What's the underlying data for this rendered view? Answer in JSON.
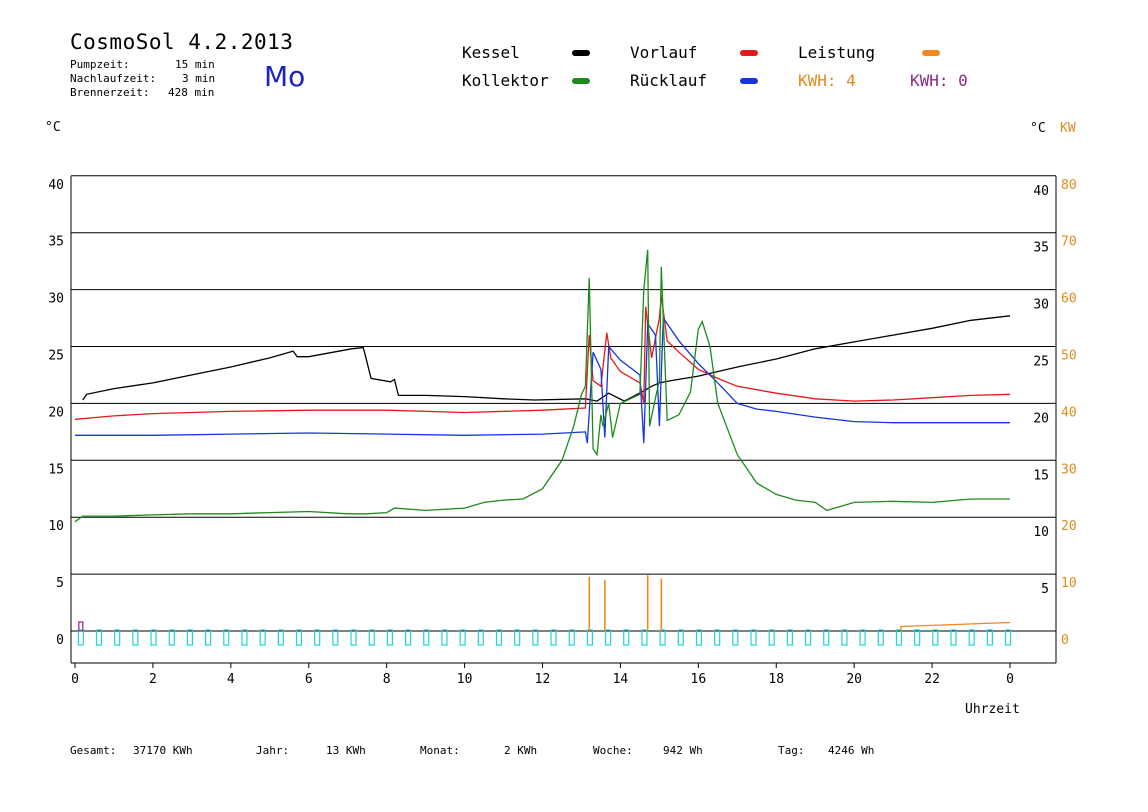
{
  "header": {
    "title": "CosmoSol 4.2.2013",
    "day": "Mo",
    "params": [
      {
        "label": "Pumpzeit:",
        "value": "15 min"
      },
      {
        "label": "Nachlaufzeit:",
        "value": "3 min"
      },
      {
        "label": "Brennerzeit:",
        "value": "428 min"
      }
    ]
  },
  "legend": {
    "kessel": {
      "label": "Kessel",
      "color": "#000000"
    },
    "vorlauf": {
      "label": "Vorlauf",
      "color": "#e11a1a"
    },
    "leistung": {
      "label": "Leistung",
      "color": "#f08a1c"
    },
    "kollektor": {
      "label": "Kollektor",
      "color": "#1d8a1d"
    },
    "ruecklauf": {
      "label": "Rücklauf",
      "color": "#1535e0"
    },
    "kwh1": {
      "label": "KWH: 4",
      "color": "#e08a1c"
    },
    "kwh2": {
      "label": "KWH: 0",
      "color": "#8a2a8a"
    }
  },
  "units": {
    "left": "°C",
    "right_c": "°C",
    "right_kw": "KW"
  },
  "footer": [
    {
      "label": "Gesamt:",
      "value": "37170 KWh"
    },
    {
      "label": "Jahr:",
      "value": "13 KWh"
    },
    {
      "label": "Monat:",
      "value": "2 KWh"
    },
    {
      "label": "Woche:",
      "value": "942 Wh"
    },
    {
      "label": "Tag:",
      "value": "4246 Wh"
    }
  ],
  "chart_data": {
    "type": "line",
    "xlabel": "Uhrzeit",
    "x_ticks": [
      "0",
      "2",
      "4",
      "6",
      "8",
      "10",
      "12",
      "14",
      "16",
      "18",
      "20",
      "22",
      "0"
    ],
    "x_range": [
      0,
      24
    ],
    "y_left_ticks": [
      "40",
      "35",
      "30",
      "25",
      "20",
      "15",
      "10",
      "5",
      "0"
    ],
    "y_right_c_ticks": [
      "40",
      "35",
      "30",
      "25",
      "20",
      "15",
      "10",
      "5"
    ],
    "y_right_kw_ticks": [
      "80",
      "70",
      "60",
      "50",
      "40",
      "30",
      "20",
      "10",
      "0"
    ],
    "ylim_c": [
      0,
      40
    ],
    "ylim_kw": [
      0,
      80
    ],
    "grid": "horizontal",
    "series": [
      {
        "name": "Kessel",
        "color": "#000000",
        "points": [
          [
            0.2,
            20.3
          ],
          [
            0.3,
            20.8
          ],
          [
            1,
            21.3
          ],
          [
            2,
            21.8
          ],
          [
            3,
            22.5
          ],
          [
            4,
            23.2
          ],
          [
            5,
            24
          ],
          [
            5.6,
            24.6
          ],
          [
            5.7,
            24.1
          ],
          [
            6,
            24.1
          ],
          [
            7.1,
            24.8
          ],
          [
            7.4,
            24.9
          ],
          [
            7.6,
            22.2
          ],
          [
            8.1,
            21.9
          ],
          [
            8.2,
            22.1
          ],
          [
            8.3,
            20.7
          ],
          [
            9,
            20.7
          ],
          [
            10,
            20.6
          ],
          [
            11,
            20.4
          ],
          [
            11.8,
            20.3
          ],
          [
            13.1,
            20.4
          ],
          [
            13.4,
            20.2
          ],
          [
            13.7,
            20.9
          ],
          [
            14.1,
            20.2
          ],
          [
            14.6,
            21.1
          ],
          [
            14.8,
            21.5
          ],
          [
            15,
            21.8
          ],
          [
            15.3,
            22
          ],
          [
            16,
            22.4
          ],
          [
            17,
            23.2
          ],
          [
            18,
            23.9
          ],
          [
            19,
            24.8
          ],
          [
            20,
            25.4
          ],
          [
            21,
            26
          ],
          [
            22,
            26.6
          ],
          [
            23,
            27.3
          ],
          [
            24,
            27.7
          ]
        ]
      },
      {
        "name": "Vorlauf",
        "color": "#e11a1a",
        "points": [
          [
            0,
            18.6
          ],
          [
            1,
            18.9
          ],
          [
            2,
            19.1
          ],
          [
            4,
            19.3
          ],
          [
            6,
            19.4
          ],
          [
            8,
            19.4
          ],
          [
            10,
            19.2
          ],
          [
            12,
            19.4
          ],
          [
            13.1,
            19.6
          ],
          [
            13.2,
            26
          ],
          [
            13.3,
            22
          ],
          [
            13.5,
            21.5
          ],
          [
            13.65,
            26.2
          ],
          [
            13.75,
            24
          ],
          [
            14,
            22.8
          ],
          [
            14.5,
            21.8
          ],
          [
            14.6,
            20
          ],
          [
            14.65,
            28.5
          ],
          [
            14.8,
            24
          ],
          [
            15,
            27.5
          ],
          [
            15.05,
            29.5
          ],
          [
            15.2,
            25.5
          ],
          [
            15.5,
            24.5
          ],
          [
            16,
            23
          ],
          [
            16.5,
            22.2
          ],
          [
            17,
            21.5
          ],
          [
            18,
            20.9
          ],
          [
            19,
            20.4
          ],
          [
            20,
            20.2
          ],
          [
            21,
            20.3
          ],
          [
            22,
            20.5
          ],
          [
            23,
            20.7
          ],
          [
            24,
            20.8
          ]
        ]
      },
      {
        "name": "Rücklauf",
        "color": "#1535e0",
        "points": [
          [
            0,
            17.2
          ],
          [
            2,
            17.2
          ],
          [
            4,
            17.3
          ],
          [
            6,
            17.4
          ],
          [
            8,
            17.3
          ],
          [
            10,
            17.2
          ],
          [
            12,
            17.3
          ],
          [
            13.1,
            17.5
          ],
          [
            13.15,
            16.5
          ],
          [
            13.3,
            24.5
          ],
          [
            13.5,
            23
          ],
          [
            13.6,
            17
          ],
          [
            13.7,
            25
          ],
          [
            14,
            23.8
          ],
          [
            14.5,
            22.5
          ],
          [
            14.6,
            16.5
          ],
          [
            14.7,
            27
          ],
          [
            14.9,
            26
          ],
          [
            15,
            18
          ],
          [
            15.1,
            27.5
          ],
          [
            15.5,
            25.5
          ],
          [
            16,
            23.5
          ],
          [
            16.5,
            21.8
          ],
          [
            17,
            20
          ],
          [
            17.5,
            19.5
          ],
          [
            18,
            19.3
          ],
          [
            19,
            18.8
          ],
          [
            20,
            18.4
          ],
          [
            21,
            18.3
          ],
          [
            22,
            18.3
          ],
          [
            23,
            18.3
          ],
          [
            24,
            18.3
          ]
        ]
      },
      {
        "name": "Kollektor",
        "color": "#1d8a1d",
        "points": [
          [
            0,
            9.6
          ],
          [
            0.2,
            10.1
          ],
          [
            1,
            10.1
          ],
          [
            2,
            10.2
          ],
          [
            3,
            10.3
          ],
          [
            4,
            10.3
          ],
          [
            5,
            10.4
          ],
          [
            6,
            10.5
          ],
          [
            7,
            10.3
          ],
          [
            7.5,
            10.3
          ],
          [
            8,
            10.4
          ],
          [
            8.2,
            10.8
          ],
          [
            9,
            10.6
          ],
          [
            10,
            10.8
          ],
          [
            10.5,
            11.3
          ],
          [
            11,
            11.5
          ],
          [
            11.5,
            11.6
          ],
          [
            12,
            12.5
          ],
          [
            12.5,
            15
          ],
          [
            12.8,
            18
          ],
          [
            13,
            20.8
          ],
          [
            13.1,
            21.5
          ],
          [
            13.2,
            31
          ],
          [
            13.3,
            16
          ],
          [
            13.4,
            15.5
          ],
          [
            13.5,
            19
          ],
          [
            13.55,
            18
          ],
          [
            13.7,
            20
          ],
          [
            13.8,
            17
          ],
          [
            14,
            20
          ],
          [
            14.5,
            20.8
          ],
          [
            14.6,
            30
          ],
          [
            14.7,
            33.5
          ],
          [
            14.75,
            18
          ],
          [
            14.9,
            20.5
          ],
          [
            15,
            22
          ],
          [
            15.05,
            32
          ],
          [
            15.2,
            18.5
          ],
          [
            15.5,
            19
          ],
          [
            15.8,
            21
          ],
          [
            16,
            26.5
          ],
          [
            16.1,
            27.2
          ],
          [
            16.3,
            25
          ],
          [
            16.5,
            20
          ],
          [
            17,
            15.5
          ],
          [
            17.5,
            13
          ],
          [
            18,
            12
          ],
          [
            18.5,
            11.5
          ],
          [
            19,
            11.3
          ],
          [
            19.3,
            10.6
          ],
          [
            19.6,
            10.9
          ],
          [
            20,
            11.3
          ],
          [
            21,
            11.4
          ],
          [
            22,
            11.3
          ],
          [
            23,
            11.6
          ],
          [
            24,
            11.6
          ]
        ]
      }
    ],
    "leistung": {
      "name": "Leistung",
      "color": "#f08a1c",
      "spikes": [
        [
          13.2,
          9.5
        ],
        [
          13.6,
          9
        ],
        [
          14.7,
          9.8
        ],
        [
          15.05,
          9.2
        ]
      ],
      "baseline_from": 21.2,
      "baseline_value": 0.8,
      "baseline_end": 1.5
    },
    "pump": {
      "color": "#21d2e0",
      "marker_value": 1.0
    }
  }
}
